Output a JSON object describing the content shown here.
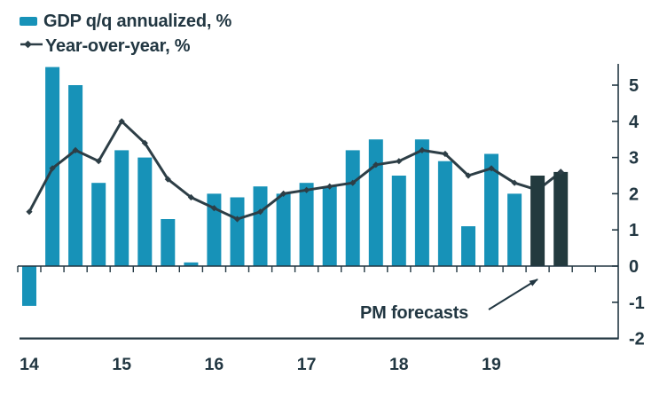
{
  "legend": {
    "bar_label": "GDP q/q annualized, %",
    "line_label": "Year-over-year, %"
  },
  "annotation": {
    "text": "PM forecasts"
  },
  "colors": {
    "bar": "#1792b8",
    "bar_forecast": "#233a3e",
    "line": "#2d3e46",
    "text": "#223742"
  },
  "chart_data": {
    "type": "bar",
    "title": "",
    "categories": [
      "14Q1",
      "14Q2",
      "14Q3",
      "14Q4",
      "15Q1",
      "15Q2",
      "15Q3",
      "15Q4",
      "16Q1",
      "16Q2",
      "16Q3",
      "16Q4",
      "17Q1",
      "17Q2",
      "17Q3",
      "17Q4",
      "18Q1",
      "18Q2",
      "18Q3",
      "18Q4",
      "19Q1",
      "19Q2",
      "19Q3",
      "19Q4"
    ],
    "series": [
      {
        "name": "GDP q/q annualized, %",
        "type": "bar",
        "values": [
          -1.1,
          5.5,
          5.0,
          2.3,
          3.2,
          3.0,
          1.3,
          0.1,
          2.0,
          1.9,
          2.2,
          2.0,
          2.3,
          2.2,
          3.2,
          3.5,
          2.5,
          3.5,
          2.9,
          1.1,
          3.1,
          2.0,
          2.5,
          2.6
        ],
        "forecast_count": 2
      },
      {
        "name": "Year-over-year, %",
        "type": "line",
        "values": [
          1.5,
          2.7,
          3.2,
          2.9,
          4.0,
          3.4,
          2.4,
          1.9,
          1.6,
          1.3,
          1.5,
          2.0,
          2.1,
          2.2,
          2.3,
          2.8,
          2.9,
          3.2,
          3.1,
          2.5,
          2.7,
          2.3,
          2.1,
          2.6
        ]
      }
    ],
    "x_year_labels": [
      "14",
      "15",
      "16",
      "17",
      "18",
      "19"
    ],
    "yticks": [
      5,
      4,
      3,
      2,
      1,
      0,
      -1,
      -2
    ],
    "ylim": [
      -2,
      5.6
    ],
    "xlabel": "",
    "ylabel": "",
    "grid": false,
    "legend_position": "top-left",
    "y_axis_side": "right",
    "forecast_note": "PM forecasts"
  }
}
